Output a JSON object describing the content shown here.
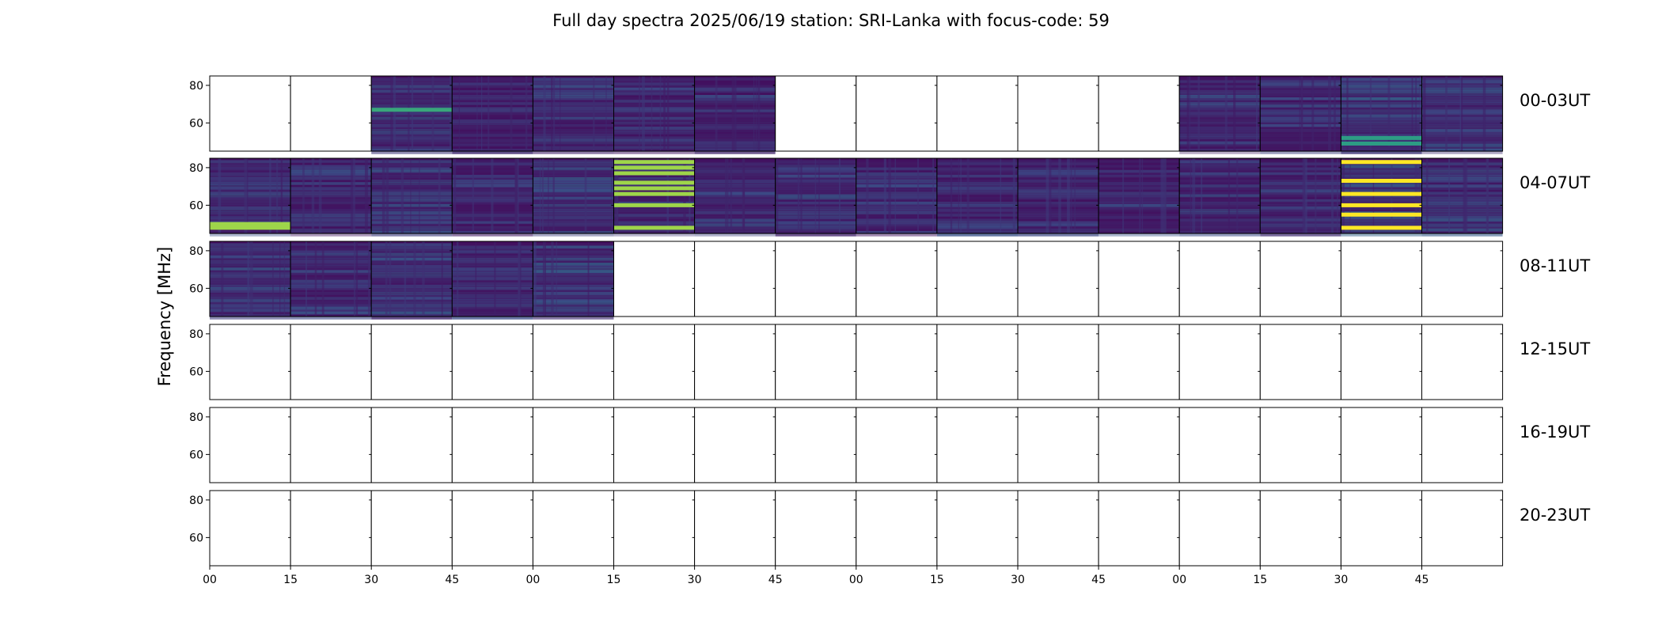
{
  "figure": {
    "title": "Full day spectra 2025/06/19 station: SRI-Lanka with focus-code: 59",
    "ylabel": "Frequency [MHz]"
  },
  "chart_data": {
    "type": "heatmap",
    "title": "Full day spectra 2025/06/19 station: SRI-Lanka with focus-code: 59",
    "ylabel": "Frequency [MHz]",
    "colormap": "viridis",
    "ylim": [
      45,
      85
    ],
    "yticks": [
      60,
      80
    ],
    "ytick_labels": [
      "60",
      "80"
    ],
    "xtick_labels": [
      "00",
      "15",
      "30",
      "45",
      "00",
      "15",
      "30",
      "45",
      "00",
      "15",
      "30",
      "45",
      "00",
      "15",
      "30",
      "45"
    ],
    "rows": [
      {
        "label": "00-03UT",
        "filled": [
          0,
          0,
          1,
          1,
          1,
          1,
          1,
          0,
          0,
          0,
          0,
          0,
          1,
          1,
          1,
          1
        ]
      },
      {
        "label": "04-07UT",
        "filled": [
          1,
          1,
          1,
          1,
          1,
          1,
          1,
          1,
          1,
          1,
          1,
          1,
          1,
          1,
          1,
          1
        ]
      },
      {
        "label": "08-11UT",
        "filled": [
          1,
          1,
          1,
          1,
          1,
          0,
          0,
          0,
          0,
          0,
          0,
          0,
          0,
          0,
          0,
          0
        ]
      },
      {
        "label": "12-15UT",
        "filled": [
          0,
          0,
          0,
          0,
          0,
          0,
          0,
          0,
          0,
          0,
          0,
          0,
          0,
          0,
          0,
          0
        ]
      },
      {
        "label": "16-19UT",
        "filled": [
          0,
          0,
          0,
          0,
          0,
          0,
          0,
          0,
          0,
          0,
          0,
          0,
          0,
          0,
          0,
          0
        ]
      },
      {
        "label": "20-23UT",
        "filled": [
          0,
          0,
          0,
          0,
          0,
          0,
          0,
          0,
          0,
          0,
          0,
          0,
          0,
          0,
          0,
          0
        ]
      }
    ],
    "bright_bands": [
      {
        "row": 1,
        "panel": 5,
        "freqs": [
          83,
          80,
          77,
          72,
          69,
          66,
          60,
          48
        ],
        "level": 0.85
      },
      {
        "row": 1,
        "panel": 14,
        "freqs": [
          83,
          73,
          66,
          60,
          55,
          48
        ],
        "level": 1.0
      },
      {
        "row": 1,
        "panel": 0,
        "freqs": [
          48,
          50
        ],
        "level": 0.85
      },
      {
        "row": 0,
        "panel": 2,
        "freqs": [
          67
        ],
        "level": 0.6
      },
      {
        "row": 0,
        "panel": 14,
        "freqs": [
          49,
          52
        ],
        "level": 0.55
      }
    ]
  }
}
